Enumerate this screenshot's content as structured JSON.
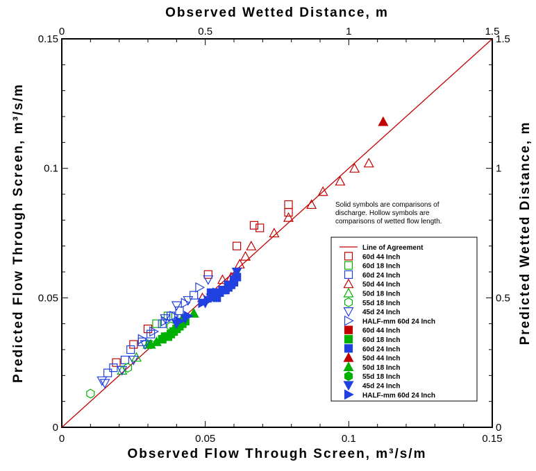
{
  "chart_data": {
    "type": "scatter",
    "title": "",
    "xlabel": "Observed Flow Through Screen, m³/s/m",
    "ylabel": "Predicted Flow Through Screen, m³/s/m",
    "x2label": "Observed Wetted Distance, m",
    "y2label": "Predicted Wetted Distance, m",
    "xlim": [
      0,
      0.15
    ],
    "ylim": [
      0,
      0.15
    ],
    "x2lim": [
      0,
      1.5
    ],
    "y2lim": [
      0,
      1.5
    ],
    "x_ticks": [
      "0",
      "0.05",
      "0.1",
      "0.15"
    ],
    "y_ticks": [
      "0",
      "0.05",
      "0.1",
      "0.15"
    ],
    "x2_ticks": [
      "0",
      "0.5",
      "1",
      "1.5"
    ],
    "y2_ticks": [
      "0",
      "0.5",
      "1",
      "1.5"
    ],
    "grid": false,
    "annotation": [
      "Solid symbols are comparisons of",
      "discharge. Hollow symbols are",
      "comparisons of wetted flow length."
    ],
    "line": {
      "name": "Line of Agreement",
      "x": [
        0,
        0.15
      ],
      "y": [
        0,
        0.15
      ],
      "color": "#c00000"
    },
    "legend_position": "right",
    "series": [
      {
        "name": "60d 44 Inch",
        "marker": "square",
        "filled": false,
        "color": "#c00000",
        "points": [
          [
            0.03,
            0.038
          ],
          [
            0.025,
            0.032
          ],
          [
            0.019,
            0.025
          ],
          [
            0.051,
            0.059
          ],
          [
            0.061,
            0.07
          ],
          [
            0.067,
            0.078
          ],
          [
            0.069,
            0.077
          ],
          [
            0.079,
            0.086
          ],
          [
            0.079,
            0.083
          ]
        ]
      },
      {
        "name": "60d 18 Inch",
        "marker": "square",
        "filled": false,
        "color": "#00b000",
        "points": [
          [
            0.033,
            0.04
          ],
          [
            0.037,
            0.043
          ]
        ]
      },
      {
        "name": "60d 24 Inch",
        "marker": "square",
        "filled": false,
        "color": "#2040e0",
        "points": [
          [
            0.016,
            0.021
          ],
          [
            0.018,
            0.023
          ],
          [
            0.022,
            0.026
          ],
          [
            0.024,
            0.03
          ],
          [
            0.028,
            0.033
          ],
          [
            0.031,
            0.036
          ],
          [
            0.035,
            0.04
          ],
          [
            0.038,
            0.043
          ],
          [
            0.041,
            0.045
          ],
          [
            0.046,
            0.051
          ]
        ]
      },
      {
        "name": "50d 44 Inch",
        "marker": "triangle-up",
        "filled": false,
        "color": "#c00000",
        "points": [
          [
            0.049,
            0.05
          ],
          [
            0.056,
            0.057
          ],
          [
            0.059,
            0.058
          ],
          [
            0.062,
            0.063
          ],
          [
            0.064,
            0.066
          ],
          [
            0.066,
            0.07
          ],
          [
            0.074,
            0.075
          ],
          [
            0.079,
            0.081
          ],
          [
            0.087,
            0.086
          ],
          [
            0.091,
            0.091
          ],
          [
            0.097,
            0.095
          ],
          [
            0.102,
            0.1
          ],
          [
            0.107,
            0.102
          ]
        ]
      },
      {
        "name": "50d 18 Inch",
        "marker": "triangle-up",
        "filled": false,
        "color": "#00b000",
        "points": [
          [
            0.021,
            0.022
          ],
          [
            0.026,
            0.027
          ],
          [
            0.03,
            0.032
          ]
        ]
      },
      {
        "name": "55d 18 Inch",
        "marker": "hexagon",
        "filled": false,
        "color": "#00b000",
        "points": [
          [
            0.01,
            0.013
          ],
          [
            0.023,
            0.023
          ],
          [
            0.031,
            0.032
          ],
          [
            0.038,
            0.039
          ]
        ]
      },
      {
        "name": "45d 24 Inch",
        "marker": "triangle-down",
        "filled": false,
        "color": "#2040e0",
        "points": [
          [
            0.014,
            0.018
          ],
          [
            0.015,
            0.017
          ],
          [
            0.021,
            0.022
          ],
          [
            0.025,
            0.026
          ],
          [
            0.029,
            0.032
          ],
          [
            0.036,
            0.042
          ],
          [
            0.04,
            0.047
          ],
          [
            0.044,
            0.049
          ],
          [
            0.051,
            0.057
          ]
        ]
      },
      {
        "name": "HALF-mm 60d 24 Inch",
        "marker": "triangle-right",
        "filled": false,
        "color": "#2040e0",
        "points": [
          [
            0.028,
            0.034
          ],
          [
            0.032,
            0.037
          ],
          [
            0.036,
            0.041
          ],
          [
            0.039,
            0.043
          ],
          [
            0.043,
            0.048
          ],
          [
            0.048,
            0.054
          ]
        ]
      },
      {
        "name": "60d 44 Inch",
        "marker": "square",
        "filled": true,
        "color": "#c00000",
        "points": []
      },
      {
        "name": "60d 18 Inch",
        "marker": "square",
        "filled": true,
        "color": "#00b000",
        "points": [
          [
            0.035,
            0.034
          ],
          [
            0.036,
            0.035
          ],
          [
            0.037,
            0.035
          ],
          [
            0.038,
            0.036
          ],
          [
            0.039,
            0.037
          ],
          [
            0.04,
            0.038
          ],
          [
            0.041,
            0.039
          ],
          [
            0.042,
            0.04
          ],
          [
            0.043,
            0.041
          ]
        ]
      },
      {
        "name": "60d 24 Inch",
        "marker": "square",
        "filled": true,
        "color": "#2040e0",
        "points": [
          [
            0.052,
            0.052
          ],
          [
            0.053,
            0.051
          ],
          [
            0.054,
            0.05
          ],
          [
            0.055,
            0.052
          ],
          [
            0.056,
            0.053
          ],
          [
            0.057,
            0.053
          ],
          [
            0.058,
            0.054
          ],
          [
            0.059,
            0.055
          ],
          [
            0.06,
            0.056
          ],
          [
            0.06,
            0.057
          ],
          [
            0.061,
            0.058
          ]
        ]
      },
      {
        "name": "50d 44 Inch",
        "marker": "triangle-up",
        "filled": true,
        "color": "#c00000",
        "points": [
          [
            0.112,
            0.118
          ]
        ]
      },
      {
        "name": "50d 18 Inch",
        "marker": "triangle-up",
        "filled": true,
        "color": "#00b000",
        "points": [
          [
            0.031,
            0.032
          ],
          [
            0.033,
            0.033
          ],
          [
            0.042,
            0.042
          ],
          [
            0.046,
            0.044
          ]
        ]
      },
      {
        "name": "55d 18 Inch",
        "marker": "hexagon",
        "filled": true,
        "color": "#00b000",
        "points": [
          [
            0.036,
            0.035
          ]
        ]
      },
      {
        "name": "45d 24 Inch",
        "marker": "triangle-down",
        "filled": true,
        "color": "#2040e0",
        "points": [
          [
            0.04,
            0.04
          ],
          [
            0.043,
            0.042
          ],
          [
            0.05,
            0.048
          ],
          [
            0.052,
            0.05
          ],
          [
            0.055,
            0.052
          ],
          [
            0.061,
            0.06
          ]
        ]
      },
      {
        "name": "HALF-mm 60d 24 Inch",
        "marker": "triangle-right",
        "filled": true,
        "color": "#2040e0",
        "points": [
          [
            0.041,
            0.041
          ],
          [
            0.044,
            0.043
          ],
          [
            0.049,
            0.048
          ],
          [
            0.051,
            0.049
          ],
          [
            0.054,
            0.052
          ],
          [
            0.058,
            0.055
          ]
        ]
      }
    ]
  }
}
